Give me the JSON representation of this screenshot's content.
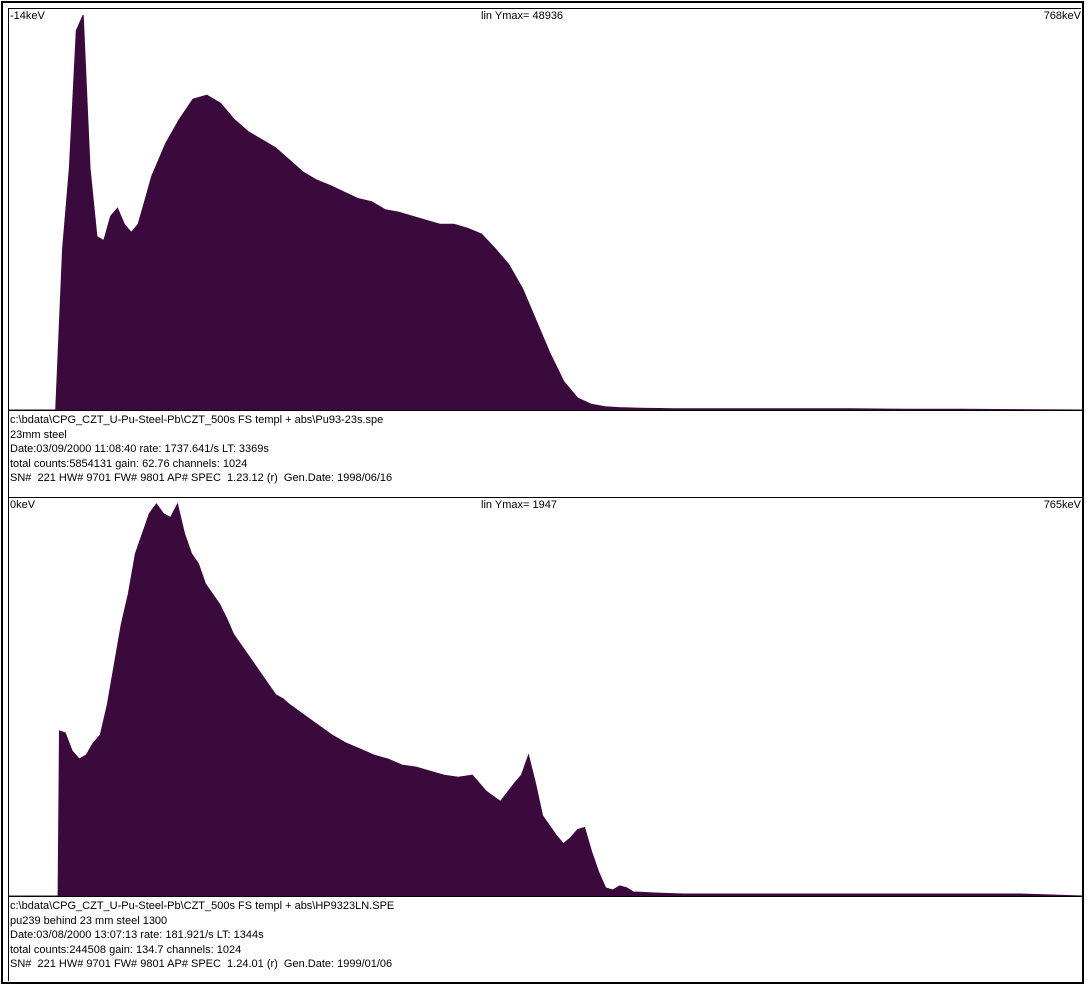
{
  "colors": {
    "fill": "#3b0a3d",
    "axis": "#000000",
    "background": "#ffffff"
  },
  "panels": [
    {
      "header": {
        "left": "-14keV",
        "middle": "lin Ymax= 48936",
        "right": "768keV"
      },
      "info": [
        "c:\\bdata\\CPG_CZT_U-Pu-Steel-Pb\\CZT_500s FS templ + abs\\Pu93-23s.spe",
        "23mm steel",
        "Date:03/09/2000 11:08:40 rate: 1737.641/s LT: 3369s",
        "total counts:5854131 gain: 62.76 channels: 1024",
        "SN#  221 HW# 9701 FW# 9801 AP# SPEC  1.23.12 (r)  Gen.Date: 1998/06/16"
      ]
    },
    {
      "header": {
        "left": "0keV",
        "middle": "lin Ymax= 1947",
        "right": "765keV"
      },
      "info": [
        "c:\\bdata\\CPG_CZT_U-Pu-Steel-Pb\\CZT_500s FS templ + abs\\HP9323LN.SPE",
        "pu239 behind 23 mm steel 1300",
        "Date:03/08/2000 13:07:13 rate: 181.921/s LT: 1344s",
        "total counts:244508 gain: 134.7 channels: 1024",
        "SN#  221 HW# 9701 FW# 9801 AP# SPEC  1.24.01 (r)  Gen.Date: 1999/01/06"
      ]
    }
  ],
  "chart_data": [
    {
      "type": "area",
      "xlim": [
        -14,
        768
      ],
      "ylim": [
        0,
        48936
      ],
      "x": [
        -14,
        20,
        25,
        30,
        35,
        40,
        45,
        50,
        55,
        60,
        65,
        70,
        75,
        80,
        85,
        90,
        95,
        100,
        110,
        120,
        130,
        140,
        150,
        160,
        170,
        180,
        190,
        200,
        210,
        220,
        230,
        240,
        250,
        260,
        270,
        280,
        290,
        300,
        310,
        320,
        330,
        340,
        350,
        360,
        370,
        380,
        390,
        400,
        410,
        420,
        430,
        440,
        450,
        460,
        470,
        480,
        500,
        520,
        540,
        560,
        580,
        600,
        640,
        680,
        720,
        768
      ],
      "y": [
        0,
        0,
        20000,
        30000,
        47000,
        48936,
        30000,
        21500,
        21000,
        24000,
        25000,
        23000,
        22000,
        23000,
        26000,
        29000,
        31000,
        33000,
        36000,
        38500,
        39000,
        38000,
        36000,
        34500,
        33500,
        32500,
        31000,
        29500,
        28500,
        27800,
        27000,
        26200,
        25800,
        24800,
        24500,
        24000,
        23500,
        23000,
        23000,
        22500,
        21800,
        20000,
        18000,
        15000,
        11000,
        7000,
        3500,
        1500,
        700,
        400,
        300,
        250,
        200,
        180,
        150,
        150,
        150,
        150,
        150,
        150,
        150,
        150,
        100,
        100,
        50,
        0
      ]
    },
    {
      "type": "area",
      "xlim": [
        0,
        765
      ],
      "ylim": [
        0,
        1947
      ],
      "x": [
        0,
        35,
        36,
        40,
        45,
        50,
        55,
        60,
        65,
        70,
        75,
        80,
        85,
        90,
        95,
        100,
        105,
        110,
        115,
        120,
        125,
        130,
        135,
        140,
        145,
        150,
        155,
        160,
        165,
        170,
        175,
        180,
        185,
        190,
        195,
        200,
        210,
        220,
        230,
        240,
        250,
        260,
        270,
        280,
        290,
        300,
        310,
        320,
        330,
        340,
        350,
        360,
        365,
        370,
        375,
        380,
        385,
        390,
        395,
        400,
        405,
        410,
        415,
        420,
        425,
        430,
        435,
        440,
        445,
        460,
        480,
        520,
        560,
        600,
        640,
        680,
        720,
        765
      ],
      "y": [
        0,
        0,
        820,
        810,
        720,
        680,
        700,
        760,
        800,
        950,
        1150,
        1350,
        1500,
        1700,
        1800,
        1900,
        1947,
        1900,
        1880,
        1947,
        1800,
        1700,
        1650,
        1550,
        1500,
        1450,
        1380,
        1300,
        1250,
        1200,
        1150,
        1100,
        1050,
        1000,
        980,
        950,
        900,
        850,
        800,
        760,
        730,
        700,
        680,
        650,
        640,
        620,
        600,
        590,
        600,
        520,
        470,
        560,
        600,
        700,
        560,
        400,
        350,
        300,
        260,
        290,
        330,
        340,
        220,
        120,
        40,
        30,
        50,
        40,
        20,
        15,
        10,
        10,
        10,
        10,
        10,
        10,
        10,
        0
      ]
    }
  ]
}
